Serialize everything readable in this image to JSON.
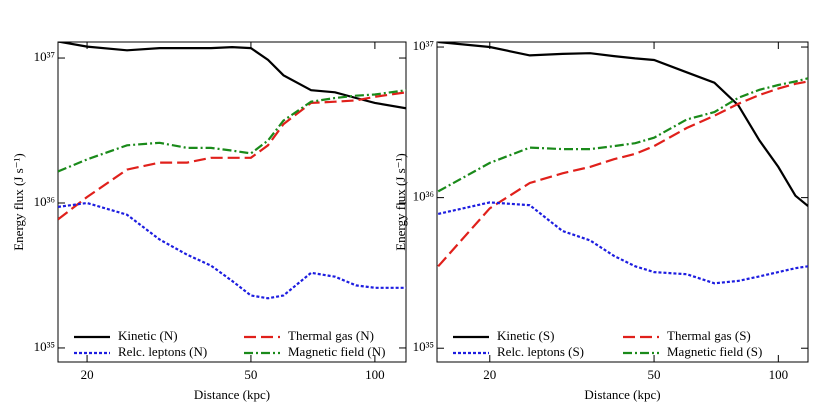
{
  "chart_data": [
    {
      "type": "line",
      "xlabel": "Distance (kpc)",
      "ylabel": "Energy flux (J s⁻¹)",
      "xscale": "log",
      "yscale": "log",
      "xlim": [
        17,
        119
      ],
      "ylim": [
        8e+34,
        1.29e+37
      ],
      "xticks": [
        20,
        50,
        100
      ],
      "yticks": [
        {
          "value": 1e+35,
          "label": "10³⁵"
        },
        {
          "value": 1e+36,
          "label": "10³⁶"
        },
        {
          "value": 1e+37,
          "label": "10³⁷"
        }
      ],
      "x": [
        17,
        20,
        25,
        30,
        35,
        40,
        45,
        50,
        55,
        60,
        70,
        80,
        90,
        100,
        119
      ],
      "series": [
        {
          "name": "Kinetic (N)",
          "color": "#000000",
          "dash": "solid",
          "values": [
            1.3e+37,
            1.2e+37,
            1.13e+37,
            1.17e+37,
            1.17e+37,
            1.17e+37,
            1.19e+37,
            1.17e+37,
            9.7e+36,
            7.6e+36,
            6e+36,
            5.8e+36,
            5.3e+36,
            4.9e+36,
            4.5e+36
          ]
        },
        {
          "name": "Thermal gas (N)",
          "color": "#e0201b",
          "dash": "longdash",
          "values": [
            7.7e+35,
            1.1e+36,
            1.7e+36,
            1.9e+36,
            1.9e+36,
            2.05e+36,
            2.05e+36,
            2.05e+36,
            2.5e+36,
            3.5e+36,
            4.9e+36,
            5e+36,
            5.1e+36,
            5.4e+36,
            5.8e+36
          ]
        },
        {
          "name": "Relc. leptons (N)",
          "color": "#1d1de0",
          "dash": "dotted",
          "values": [
            9.4e+35,
            1e+36,
            8.3e+35,
            5.6e+35,
            4.4e+35,
            3.7e+35,
            2.9e+35,
            2.3e+35,
            2.2e+35,
            2.3e+35,
            3.3e+35,
            3.1e+35,
            2.7e+35,
            2.6e+35,
            2.6e+35
          ]
        },
        {
          "name": "Magnetic field (N)",
          "color": "#1a8a1a",
          "dash": "dashdot",
          "values": [
            1.65e+36,
            2e+36,
            2.5e+36,
            2.6e+36,
            2.4e+36,
            2.4e+36,
            2.3e+36,
            2.2e+36,
            2.7e+36,
            3.7e+36,
            5e+36,
            5.3e+36,
            5.5e+36,
            5.6e+36,
            6e+36
          ]
        }
      ]
    },
    {
      "type": "line",
      "xlabel": "Distance (kpc)",
      "ylabel": "Energy flux (J s⁻¹)",
      "xscale": "log",
      "yscale": "log",
      "xlim": [
        14.9,
        118
      ],
      "ylim": [
        8.1e+34,
        1.08e+37
      ],
      "xticks": [
        20,
        50,
        100
      ],
      "yticks": [
        {
          "value": 1e+35,
          "label": "10³⁵"
        },
        {
          "value": 1e+36,
          "label": "10³⁶"
        },
        {
          "value": 1e+37,
          "label": "10³⁷"
        }
      ],
      "x": [
        15,
        20,
        25,
        30,
        35,
        40,
        45,
        50,
        60,
        70,
        80,
        90,
        100,
        110,
        118
      ],
      "series": [
        {
          "name": "Kinetic (S)",
          "color": "#000000",
          "dash": "solid",
          "values": [
            1.08e+37,
            1e+37,
            8.8e+36,
            9e+36,
            9.1e+36,
            8.7e+36,
            8.4e+36,
            8.2e+36,
            6.8e+36,
            5.8e+36,
            4.1e+36,
            2.4e+36,
            1.6e+36,
            1.03e+36,
            8.8e+35
          ]
        },
        {
          "name": "Thermal gas (S)",
          "color": "#e0201b",
          "dash": "longdash",
          "values": [
            3.5e+35,
            8.5e+35,
            1.25e+36,
            1.45e+36,
            1.6e+36,
            1.8e+36,
            1.95e+36,
            2.2e+36,
            2.9e+36,
            3.5e+36,
            4.2e+36,
            4.8e+36,
            5.3e+36,
            5.7e+36,
            5.9e+36
          ]
        },
        {
          "name": "Relc. leptons (S)",
          "color": "#1d1de0",
          "dash": "dotted",
          "values": [
            7.8e+35,
            9.3e+35,
            8.9e+35,
            6e+35,
            5.2e+35,
            4.1e+35,
            3.5e+35,
            3.2e+35,
            3.1e+35,
            2.7e+35,
            2.8e+35,
            3e+35,
            3.2e+35,
            3.4e+35,
            3.5e+35
          ]
        },
        {
          "name": "Magnetic field (S)",
          "color": "#1a8a1a",
          "dash": "dashdot",
          "values": [
            1.1e+36,
            1.7e+36,
            2.15e+36,
            2.1e+36,
            2.1e+36,
            2.2e+36,
            2.3e+36,
            2.5e+36,
            3.3e+36,
            3.7e+36,
            4.6e+36,
            5.2e+36,
            5.6e+36,
            5.9e+36,
            6.2e+36
          ]
        }
      ]
    }
  ]
}
